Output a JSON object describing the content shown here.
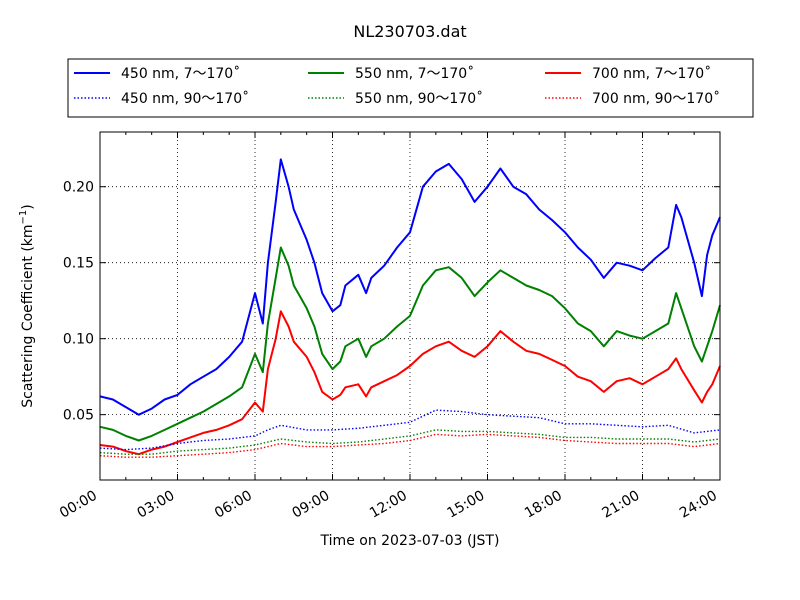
{
  "chart_data": {
    "type": "line",
    "title": "NL230703.dat",
    "xlabel": "Time on 2023-07-03 (JST)",
    "ylabel_main": "Scattering Coefficient (km",
    "ylabel_sup": "−1",
    "ylabel_close": ")",
    "x_unit": "hours since 2023-07-03 00:00 JST",
    "xlim": [
      0,
      24
    ],
    "ylim": [
      0.007,
      0.236
    ],
    "xticks": [
      0,
      3,
      6,
      9,
      12,
      15,
      18,
      21,
      24
    ],
    "xtick_labels": [
      "00:00",
      "03:00",
      "06:00",
      "09:00",
      "12:00",
      "15:00",
      "18:00",
      "21:00",
      "24:00"
    ],
    "yticks": [
      0.05,
      0.1,
      0.15,
      0.2
    ],
    "ytick_labels": [
      "0.05",
      "0.10",
      "0.15",
      "0.20"
    ],
    "grid": true,
    "legend_position": "top",
    "series": [
      {
        "name": "450 nm, 7～170˚",
        "color": "#0000ff",
        "style": "solid",
        "points": [
          [
            0,
            0.062
          ],
          [
            0.5,
            0.06
          ],
          [
            1,
            0.055
          ],
          [
            1.5,
            0.05
          ],
          [
            2,
            0.054
          ],
          [
            2.5,
            0.06
          ],
          [
            3,
            0.063
          ],
          [
            3.5,
            0.07
          ],
          [
            4,
            0.075
          ],
          [
            4.5,
            0.08
          ],
          [
            5,
            0.088
          ],
          [
            5.5,
            0.098
          ],
          [
            6,
            0.13
          ],
          [
            6.3,
            0.11
          ],
          [
            6.5,
            0.15
          ],
          [
            6.8,
            0.19
          ],
          [
            7,
            0.218
          ],
          [
            7.3,
            0.2
          ],
          [
            7.5,
            0.185
          ],
          [
            8,
            0.165
          ],
          [
            8.3,
            0.15
          ],
          [
            8.6,
            0.13
          ],
          [
            9,
            0.118
          ],
          [
            9.3,
            0.122
          ],
          [
            9.5,
            0.135
          ],
          [
            10,
            0.142
          ],
          [
            10.3,
            0.13
          ],
          [
            10.5,
            0.14
          ],
          [
            11,
            0.148
          ],
          [
            11.5,
            0.16
          ],
          [
            12,
            0.17
          ],
          [
            12.5,
            0.2
          ],
          [
            13,
            0.21
          ],
          [
            13.5,
            0.215
          ],
          [
            14,
            0.205
          ],
          [
            14.5,
            0.19
          ],
          [
            15,
            0.2
          ],
          [
            15.5,
            0.212
          ],
          [
            16,
            0.2
          ],
          [
            16.5,
            0.195
          ],
          [
            17,
            0.185
          ],
          [
            17.5,
            0.178
          ],
          [
            18,
            0.17
          ],
          [
            18.5,
            0.16
          ],
          [
            19,
            0.152
          ],
          [
            19.5,
            0.14
          ],
          [
            20,
            0.15
          ],
          [
            20.5,
            0.148
          ],
          [
            21,
            0.145
          ],
          [
            21.5,
            0.153
          ],
          [
            22,
            0.16
          ],
          [
            22.3,
            0.188
          ],
          [
            22.5,
            0.18
          ],
          [
            23,
            0.15
          ],
          [
            23.3,
            0.128
          ],
          [
            23.5,
            0.155
          ],
          [
            23.7,
            0.168
          ],
          [
            24,
            0.18
          ]
        ]
      },
      {
        "name": "550 nm, 7～170˚",
        "color": "#008000",
        "style": "solid",
        "points": [
          [
            0,
            0.042
          ],
          [
            0.5,
            0.04
          ],
          [
            1,
            0.036
          ],
          [
            1.5,
            0.033
          ],
          [
            2,
            0.036
          ],
          [
            2.5,
            0.04
          ],
          [
            3,
            0.044
          ],
          [
            3.5,
            0.048
          ],
          [
            4,
            0.052
          ],
          [
            4.5,
            0.057
          ],
          [
            5,
            0.062
          ],
          [
            5.5,
            0.068
          ],
          [
            6,
            0.09
          ],
          [
            6.3,
            0.078
          ],
          [
            6.5,
            0.11
          ],
          [
            6.8,
            0.14
          ],
          [
            7,
            0.16
          ],
          [
            7.3,
            0.148
          ],
          [
            7.5,
            0.135
          ],
          [
            8,
            0.12
          ],
          [
            8.3,
            0.108
          ],
          [
            8.6,
            0.09
          ],
          [
            9,
            0.08
          ],
          [
            9.3,
            0.085
          ],
          [
            9.5,
            0.095
          ],
          [
            10,
            0.1
          ],
          [
            10.3,
            0.088
          ],
          [
            10.5,
            0.095
          ],
          [
            11,
            0.1
          ],
          [
            11.5,
            0.108
          ],
          [
            12,
            0.115
          ],
          [
            12.5,
            0.135
          ],
          [
            13,
            0.145
          ],
          [
            13.5,
            0.147
          ],
          [
            14,
            0.14
          ],
          [
            14.5,
            0.128
          ],
          [
            15,
            0.137
          ],
          [
            15.5,
            0.145
          ],
          [
            16,
            0.14
          ],
          [
            16.5,
            0.135
          ],
          [
            17,
            0.132
          ],
          [
            17.5,
            0.128
          ],
          [
            18,
            0.12
          ],
          [
            18.5,
            0.11
          ],
          [
            19,
            0.105
          ],
          [
            19.5,
            0.095
          ],
          [
            20,
            0.105
          ],
          [
            20.5,
            0.102
          ],
          [
            21,
            0.1
          ],
          [
            21.5,
            0.105
          ],
          [
            22,
            0.11
          ],
          [
            22.3,
            0.13
          ],
          [
            22.5,
            0.12
          ],
          [
            23,
            0.095
          ],
          [
            23.3,
            0.085
          ],
          [
            23.5,
            0.095
          ],
          [
            23.7,
            0.105
          ],
          [
            24,
            0.122
          ]
        ]
      },
      {
        "name": "700 nm, 7～170˚",
        "color": "#ff0000",
        "style": "solid",
        "points": [
          [
            0,
            0.03
          ],
          [
            0.5,
            0.029
          ],
          [
            1,
            0.026
          ],
          [
            1.5,
            0.024
          ],
          [
            2,
            0.027
          ],
          [
            2.5,
            0.029
          ],
          [
            3,
            0.032
          ],
          [
            3.5,
            0.035
          ],
          [
            4,
            0.038
          ],
          [
            4.5,
            0.04
          ],
          [
            5,
            0.043
          ],
          [
            5.5,
            0.047
          ],
          [
            6,
            0.058
          ],
          [
            6.3,
            0.052
          ],
          [
            6.5,
            0.08
          ],
          [
            6.8,
            0.1
          ],
          [
            7,
            0.118
          ],
          [
            7.3,
            0.108
          ],
          [
            7.5,
            0.098
          ],
          [
            8,
            0.088
          ],
          [
            8.3,
            0.078
          ],
          [
            8.6,
            0.065
          ],
          [
            9,
            0.06
          ],
          [
            9.3,
            0.063
          ],
          [
            9.5,
            0.068
          ],
          [
            10,
            0.07
          ],
          [
            10.3,
            0.062
          ],
          [
            10.5,
            0.068
          ],
          [
            11,
            0.072
          ],
          [
            11.5,
            0.076
          ],
          [
            12,
            0.082
          ],
          [
            12.5,
            0.09
          ],
          [
            13,
            0.095
          ],
          [
            13.5,
            0.098
          ],
          [
            14,
            0.092
          ],
          [
            14.5,
            0.088
          ],
          [
            15,
            0.095
          ],
          [
            15.5,
            0.105
          ],
          [
            16,
            0.098
          ],
          [
            16.5,
            0.092
          ],
          [
            17,
            0.09
          ],
          [
            17.5,
            0.086
          ],
          [
            18,
            0.082
          ],
          [
            18.5,
            0.075
          ],
          [
            19,
            0.072
          ],
          [
            19.5,
            0.065
          ],
          [
            20,
            0.072
          ],
          [
            20.5,
            0.074
          ],
          [
            21,
            0.07
          ],
          [
            21.5,
            0.075
          ],
          [
            22,
            0.08
          ],
          [
            22.3,
            0.087
          ],
          [
            22.5,
            0.08
          ],
          [
            23,
            0.066
          ],
          [
            23.3,
            0.058
          ],
          [
            23.5,
            0.065
          ],
          [
            23.7,
            0.07
          ],
          [
            24,
            0.082
          ]
        ]
      },
      {
        "name": "450 nm, 90～170˚",
        "color": "#0000ff",
        "style": "dotted",
        "points": [
          [
            0,
            0.028
          ],
          [
            1,
            0.027
          ],
          [
            2,
            0.028
          ],
          [
            3,
            0.031
          ],
          [
            4,
            0.033
          ],
          [
            5,
            0.034
          ],
          [
            6,
            0.036
          ],
          [
            6.5,
            0.04
          ],
          [
            7,
            0.043
          ],
          [
            8,
            0.04
          ],
          [
            9,
            0.04
          ],
          [
            10,
            0.041
          ],
          [
            11,
            0.043
          ],
          [
            12,
            0.045
          ],
          [
            13,
            0.053
          ],
          [
            14,
            0.052
          ],
          [
            15,
            0.05
          ],
          [
            16,
            0.049
          ],
          [
            17,
            0.048
          ],
          [
            18,
            0.044
          ],
          [
            19,
            0.044
          ],
          [
            20,
            0.043
          ],
          [
            21,
            0.042
          ],
          [
            22,
            0.043
          ],
          [
            23,
            0.038
          ],
          [
            24,
            0.04
          ]
        ]
      },
      {
        "name": "550 nm, 90～170˚",
        "color": "#008000",
        "style": "dotted",
        "points": [
          [
            0,
            0.025
          ],
          [
            1,
            0.024
          ],
          [
            2,
            0.024
          ],
          [
            3,
            0.026
          ],
          [
            4,
            0.027
          ],
          [
            5,
            0.028
          ],
          [
            6,
            0.03
          ],
          [
            6.5,
            0.032
          ],
          [
            7,
            0.034
          ],
          [
            8,
            0.032
          ],
          [
            9,
            0.031
          ],
          [
            10,
            0.032
          ],
          [
            11,
            0.034
          ],
          [
            12,
            0.036
          ],
          [
            13,
            0.04
          ],
          [
            14,
            0.039
          ],
          [
            15,
            0.039
          ],
          [
            16,
            0.038
          ],
          [
            17,
            0.037
          ],
          [
            18,
            0.035
          ],
          [
            19,
            0.035
          ],
          [
            20,
            0.034
          ],
          [
            21,
            0.034
          ],
          [
            22,
            0.034
          ],
          [
            23,
            0.032
          ],
          [
            24,
            0.034
          ]
        ]
      },
      {
        "name": "700 nm, 90～170˚",
        "color": "#ff0000",
        "style": "dotted",
        "points": [
          [
            0,
            0.023
          ],
          [
            1,
            0.022
          ],
          [
            2,
            0.022
          ],
          [
            3,
            0.023
          ],
          [
            4,
            0.024
          ],
          [
            5,
            0.025
          ],
          [
            6,
            0.027
          ],
          [
            6.5,
            0.029
          ],
          [
            7,
            0.031
          ],
          [
            8,
            0.029
          ],
          [
            9,
            0.029
          ],
          [
            10,
            0.03
          ],
          [
            11,
            0.031
          ],
          [
            12,
            0.033
          ],
          [
            13,
            0.037
          ],
          [
            14,
            0.036
          ],
          [
            15,
            0.037
          ],
          [
            16,
            0.036
          ],
          [
            17,
            0.035
          ],
          [
            18,
            0.033
          ],
          [
            19,
            0.032
          ],
          [
            20,
            0.031
          ],
          [
            21,
            0.031
          ],
          [
            22,
            0.031
          ],
          [
            23,
            0.029
          ],
          [
            24,
            0.031
          ]
        ]
      }
    ]
  }
}
